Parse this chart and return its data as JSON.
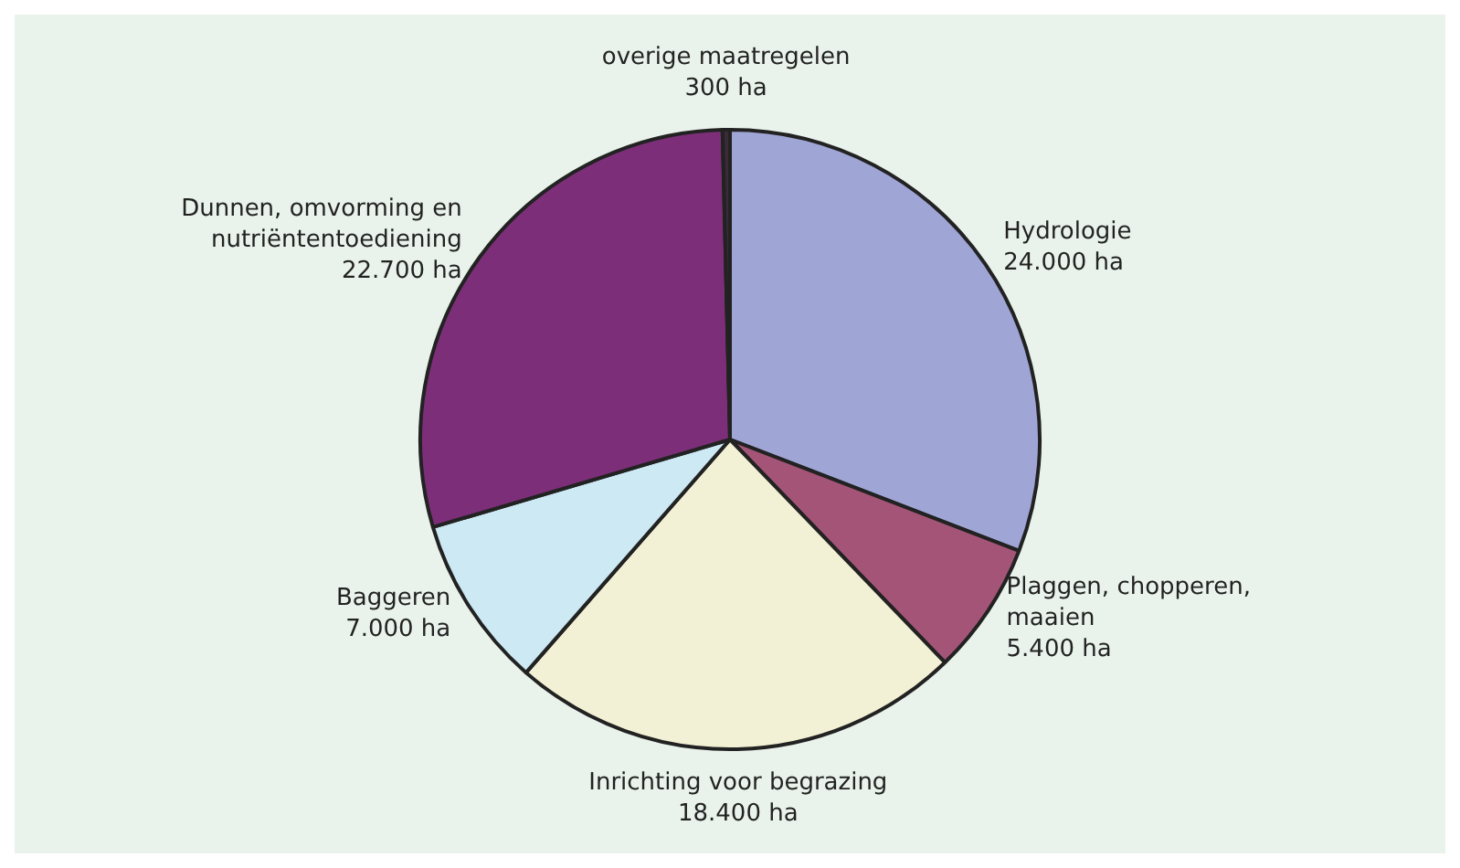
{
  "chart_data": {
    "type": "pie",
    "categories": [
      "Hydrologie",
      "Plaggen, chopperen, maaien",
      "Inrichting voor begrazing",
      "Baggeren",
      "Dunnen, omvorming en nutriëntentoediening",
      "overige maatregelen"
    ],
    "values": [
      24000,
      5400,
      18400,
      7000,
      22700,
      300
    ],
    "value_labels": [
      "24.000 ha",
      "5.400 ha",
      "18.400 ha",
      "7.000 ha",
      "22.700 ha",
      "300 ha"
    ],
    "colors": [
      "#9fa6d6",
      "#a45577",
      "#f3f1d5",
      "#cde9f3",
      "#7c2f78",
      "#3a2a3a"
    ],
    "legend": false
  }
}
